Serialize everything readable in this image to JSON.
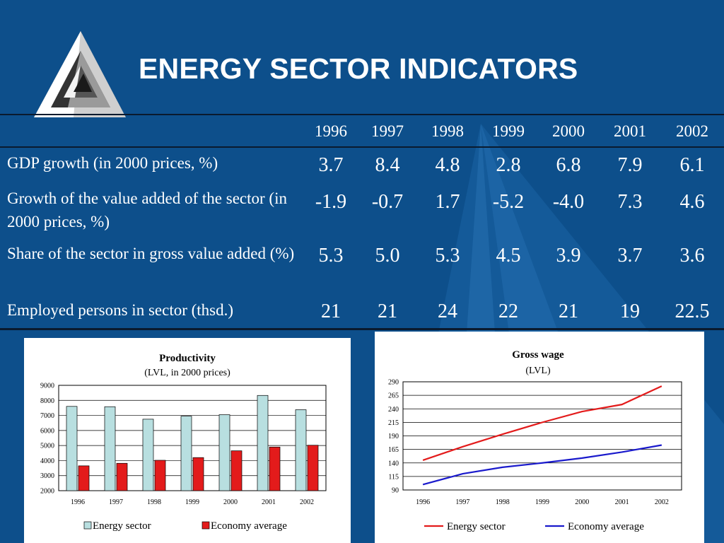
{
  "title": "ENERGY SECTOR INDICATORS",
  "colors": {
    "background": "#0d4f8b",
    "energy_bar": "#b8dfe0",
    "economy_bar": "#e31b1b",
    "energy_line": "#e31b1b",
    "economy_line": "#1a1acc"
  },
  "table": {
    "years": [
      "1996",
      "1997",
      "1998",
      "1999",
      "2000",
      "2001",
      "2002"
    ],
    "rows": [
      {
        "label": "GDP growth (in 2000 prices, %)",
        "values": [
          "3.7",
          "8.4",
          "4.8",
          "2.8",
          "6.8",
          "7.9",
          "6.1"
        ]
      },
      {
        "label": "Growth of the value added of the sector (in 2000 prices, %)",
        "values": [
          "-1.9",
          "-0.7",
          "1.7",
          "-5.2",
          "-4.0",
          "7.3",
          "4.6"
        ]
      },
      {
        "label": "Share of the sector in gross value added (%)",
        "values": [
          "5.3",
          "5.0",
          "5.3",
          "4.5",
          "3.9",
          "3.7",
          "3.6"
        ]
      },
      {
        "label": "Employed persons in sector (thsd.)",
        "values": [
          "21",
          "21",
          "24",
          "22",
          "21",
          "19",
          "22.5"
        ]
      }
    ]
  },
  "chart_data": [
    {
      "type": "bar",
      "title": "Productivity",
      "subtitle": "(LVL, in 2000 prices)",
      "categories": [
        "1996",
        "1997",
        "1998",
        "1999",
        "2000",
        "2001",
        "2002"
      ],
      "series": [
        {
          "name": "Energy sector",
          "values": [
            7600,
            7580,
            6750,
            6950,
            7050,
            8330,
            7380
          ]
        },
        {
          "name": "Economy average",
          "values": [
            3650,
            3820,
            4020,
            4200,
            4650,
            4900,
            5020
          ]
        }
      ],
      "ylim": [
        2000,
        9000
      ],
      "yticks": [
        2000,
        3000,
        4000,
        5000,
        6000,
        7000,
        8000,
        9000
      ],
      "grid": true,
      "legend": "bottom"
    },
    {
      "type": "line",
      "title": "Gross wage",
      "subtitle": "(LVL)",
      "x": [
        "1996",
        "1997",
        "1998",
        "1999",
        "2000",
        "2001",
        "2002"
      ],
      "series": [
        {
          "name": "Energy sector",
          "values": [
            145,
            170,
            193,
            215,
            235,
            248,
            282
          ]
        },
        {
          "name": "Economy average",
          "values": [
            100,
            120,
            132,
            140,
            149,
            160,
            173
          ]
        }
      ],
      "ylim": [
        90,
        290
      ],
      "yticks": [
        90,
        115,
        140,
        165,
        190,
        215,
        240,
        265,
        290
      ],
      "grid": true,
      "legend": "bottom"
    }
  ]
}
